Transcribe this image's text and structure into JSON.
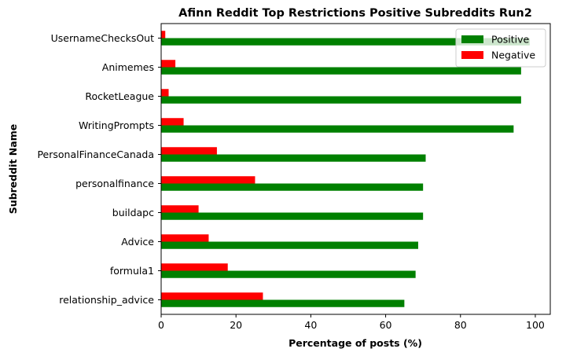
{
  "chart_data": {
    "type": "bar",
    "orientation": "horizontal",
    "title": "Afinn Reddit Top Restrictions Positive Subreddits Run2",
    "xlabel": "Percentage of posts (%)",
    "ylabel": "Subreddit Name",
    "xlim": [
      0,
      104
    ],
    "xticks": [
      0,
      20,
      40,
      60,
      80,
      100
    ],
    "grid": false,
    "legend_position": "top-right",
    "categories": [
      "relationship_advice",
      "formula1",
      "Advice",
      "buildapc",
      "personalfinance",
      "PersonalFinanceCanada",
      "WritingPrompts",
      "RocketLeague",
      "Animemes",
      "UsernameChecksOut"
    ],
    "series": [
      {
        "name": "Positive",
        "color": "#008000",
        "values": [
          65,
          68,
          68.7,
          70,
          70,
          70.7,
          94.2,
          96.2,
          96.2,
          98.5
        ]
      },
      {
        "name": "Negative",
        "color": "#ff0000",
        "values": [
          27.2,
          17.8,
          12.7,
          10,
          25.1,
          14.9,
          6,
          2,
          3.8,
          1.1
        ]
      }
    ]
  }
}
